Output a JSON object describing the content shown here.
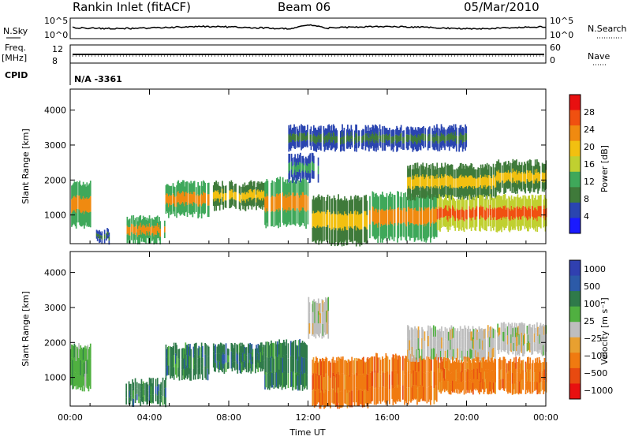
{
  "header": {
    "station": "Rankin Inlet (fitACF)",
    "beam": "Beam 06",
    "date": "05/Mar/2010"
  },
  "noise_panel": {
    "left_label": "N.Sky",
    "right_label": "N.Search",
    "left_ticks": [
      "10^5",
      "10^0"
    ],
    "right_ticks": [
      "10^5",
      "10^0"
    ]
  },
  "freq_panel": {
    "left_label_top": "Freq.",
    "left_label_unit": "[MHz]",
    "left_ticks": [
      "12",
      "8"
    ],
    "right_label": "Nave",
    "right_ticks": [
      "60",
      "0"
    ]
  },
  "cpid": {
    "label": "CPID",
    "value": "N/A -3361"
  },
  "colors": {
    "power_scale": [
      "#1a1aff",
      "#2a45b0",
      "#3f7a3a",
      "#3fa85a",
      "#c0d030",
      "#f2c010",
      "#f08a10",
      "#f05010",
      "#e81010"
    ],
    "velocity_scale": [
      "#3040b0",
      "#2c5aa8",
      "#2f7a4a",
      "#50b040",
      "#bebebe",
      "#e8a030",
      "#f07a10",
      "#e84a10",
      "#e81010"
    ]
  },
  "chart_data": [
    {
      "type": "heatmap",
      "name": "power",
      "ylabel": "Slant Range [km]",
      "xlabel": "",
      "xlim": [
        0,
        24
      ],
      "ylim": [
        180,
        4600
      ],
      "x_ticks": [
        "00:00",
        "04:00",
        "08:00",
        "12:00",
        "16:00",
        "20:00",
        "00:00"
      ],
      "y_ticks": [
        1000,
        2000,
        3000,
        4000
      ],
      "colorbar": {
        "label": "Power [dB]",
        "ticks": [
          "4",
          "8",
          "12",
          "16",
          "20",
          "24",
          "28"
        ],
        "range": [
          0,
          32
        ]
      },
      "regions": [
        {
          "t0": 0.0,
          "t1": 1.0,
          "r0": 700,
          "r1": 1900,
          "level": 22
        },
        {
          "t0": 1.3,
          "t1": 2.0,
          "r0": 250,
          "r1": 550,
          "level": 8
        },
        {
          "t0": 2.8,
          "t1": 4.8,
          "r0": 250,
          "r1": 900,
          "level": 22
        },
        {
          "t0": 4.8,
          "t1": 7.0,
          "r0": 1000,
          "r1": 1900,
          "level": 22
        },
        {
          "t0": 7.2,
          "t1": 9.8,
          "r0": 1200,
          "r1": 1900,
          "level": 18
        },
        {
          "t0": 9.8,
          "t1": 12.0,
          "r0": 700,
          "r1": 2000,
          "level": 22
        },
        {
          "t0": 11.0,
          "t1": 12.5,
          "r0": 2000,
          "r1": 2700,
          "level": 10
        },
        {
          "t0": 12.2,
          "t1": 15.0,
          "r0": 200,
          "r1": 1500,
          "level": 18
        },
        {
          "t0": 15.0,
          "t1": 18.5,
          "r0": 300,
          "r1": 1600,
          "level": 24
        },
        {
          "t0": 17.0,
          "t1": 21.5,
          "r0": 1500,
          "r1": 2400,
          "level": 18
        },
        {
          "t0": 18.5,
          "t1": 24.0,
          "r0": 600,
          "r1": 1500,
          "level": 26
        },
        {
          "t0": 21.5,
          "t1": 24.0,
          "r0": 1700,
          "r1": 2500,
          "level": 18
        },
        {
          "t0": 11.0,
          "t1": 20.0,
          "r0": 2900,
          "r1": 3500,
          "level": 6
        }
      ]
    },
    {
      "type": "heatmap",
      "name": "velocity",
      "ylabel": "Slant Range [km]",
      "xlabel": "Time UT",
      "xlim": [
        0,
        24
      ],
      "ylim": [
        180,
        4600
      ],
      "x_ticks": [
        "00:00",
        "04:00",
        "08:00",
        "12:00",
        "16:00",
        "20:00",
        "00:00"
      ],
      "y_ticks": [
        1000,
        2000,
        3000,
        4000
      ],
      "colorbar": {
        "label": "Velocity [m s⁻¹]",
        "ticks": [
          "1000",
          "500",
          "100",
          "25",
          "−25",
          "−100",
          "−500",
          "−1000"
        ]
      },
      "regions": [
        {
          "t0": 0.0,
          "t1": 1.0,
          "r0": 700,
          "r1": 1900,
          "level": 3
        },
        {
          "t0": 2.8,
          "t1": 4.8,
          "r0": 250,
          "r1": 900,
          "level": 2
        },
        {
          "t0": 4.8,
          "t1": 7.0,
          "r0": 1000,
          "r1": 1900,
          "level": 2
        },
        {
          "t0": 7.2,
          "t1": 9.8,
          "r0": 1200,
          "r1": 1900,
          "level": 2
        },
        {
          "t0": 9.8,
          "t1": 12.0,
          "r0": 700,
          "r1": 2000,
          "level": 2
        },
        {
          "t0": 12.2,
          "t1": 15.0,
          "r0": 200,
          "r1": 1500,
          "level": 6
        },
        {
          "t0": 15.0,
          "t1": 18.5,
          "r0": 300,
          "r1": 1600,
          "level": 6
        },
        {
          "t0": 17.0,
          "t1": 21.5,
          "r0": 1500,
          "r1": 2400,
          "level": 4
        },
        {
          "t0": 18.5,
          "t1": 24.0,
          "r0": 600,
          "r1": 1500,
          "level": 6
        },
        {
          "t0": 21.5,
          "t1": 24.0,
          "r0": 1700,
          "r1": 2500,
          "level": 4
        },
        {
          "t0": 12.0,
          "t1": 13.0,
          "r0": 2200,
          "r1": 3200,
          "level": 4
        }
      ]
    }
  ]
}
